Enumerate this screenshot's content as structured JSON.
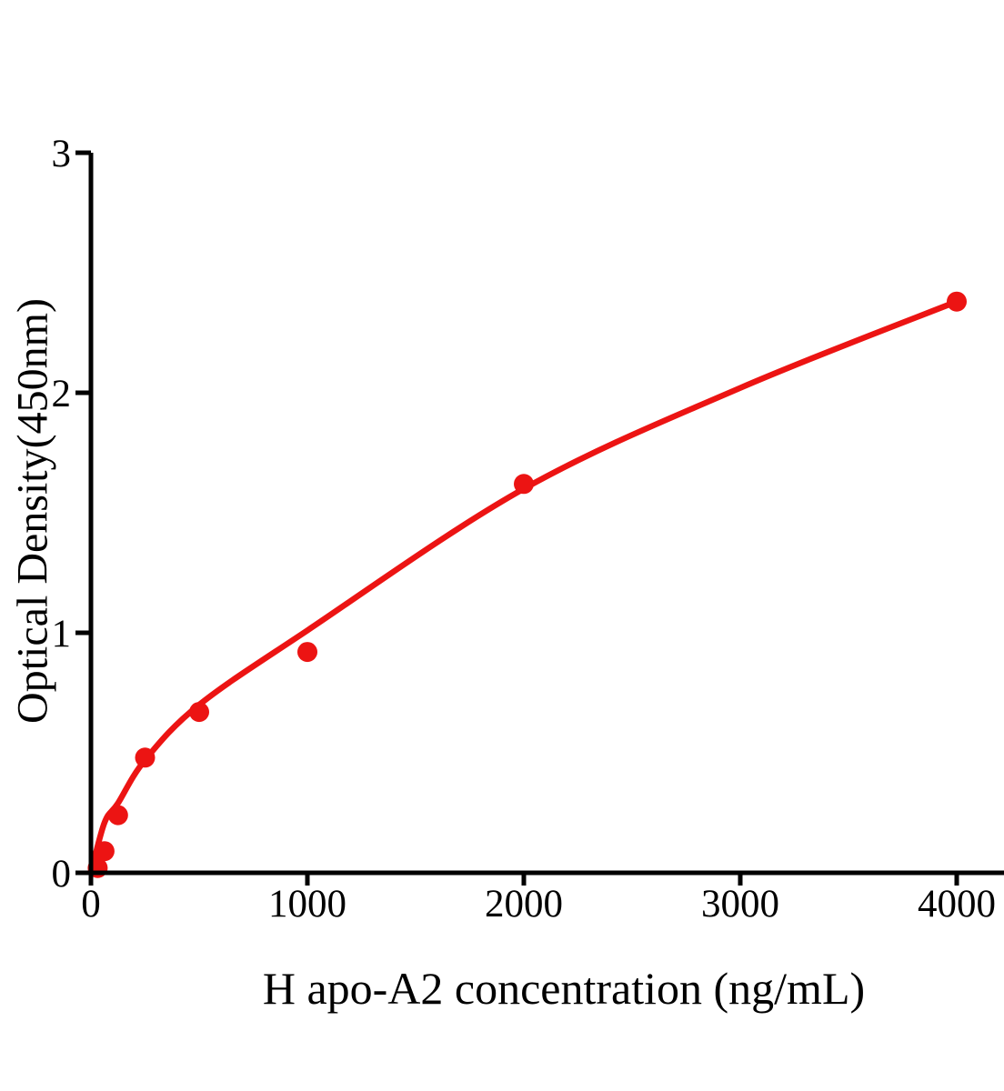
{
  "chart_data": {
    "type": "scatter",
    "title": "",
    "xlabel": "H apo-A2 concentration (ng/mL)",
    "ylabel": "Optical Density(450nm)",
    "xlim": [
      0,
      4220
    ],
    "ylim": [
      0,
      3
    ],
    "x_ticks": [
      0,
      1000,
      2000,
      3000,
      4000
    ],
    "y_ticks": [
      0,
      1,
      2,
      3
    ],
    "grid": false,
    "legend_position": "none",
    "axis_color": "#000000",
    "series": [
      {
        "name": "standard-points",
        "type": "scatter",
        "color": "#EC1413",
        "marker": "circle",
        "marker_radius": 11,
        "points": [
          {
            "x": 31.25,
            "y": 0.02
          },
          {
            "x": 62.5,
            "y": 0.09
          },
          {
            "x": 125,
            "y": 0.24
          },
          {
            "x": 250,
            "y": 0.48
          },
          {
            "x": 500,
            "y": 0.67
          },
          {
            "x": 1000,
            "y": 0.92
          },
          {
            "x": 2000,
            "y": 1.62
          },
          {
            "x": 4000,
            "y": 2.38
          }
        ]
      },
      {
        "name": "fitted-curve",
        "type": "line",
        "color": "#EC1413",
        "stroke_width": 6.5,
        "points": [
          [
            0,
            0
          ],
          [
            63,
            0.21
          ],
          [
            125,
            0.29
          ],
          [
            250,
            0.47
          ],
          [
            500,
            0.7
          ],
          [
            1000,
            1.01
          ],
          [
            2000,
            1.6
          ],
          [
            3000,
            2.02
          ],
          [
            4000,
            2.38
          ]
        ]
      }
    ]
  }
}
